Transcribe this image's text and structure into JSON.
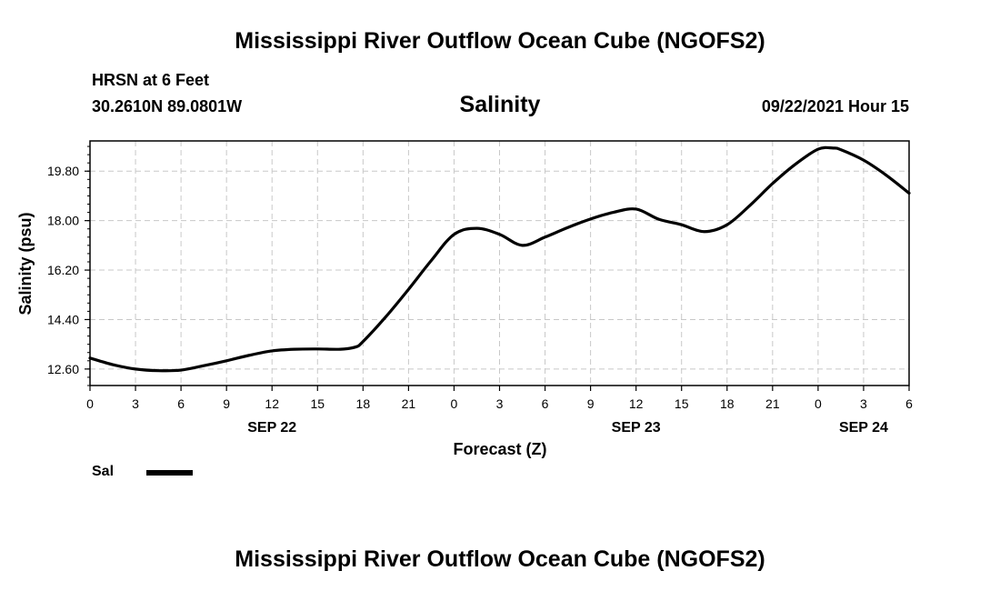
{
  "header": {
    "title": "Mississippi River Outflow Ocean Cube (NGOFS2)",
    "station": "HRSN at 6 Feet",
    "coords": "30.2610N  89.0801W",
    "subtitle": "Salinity",
    "datetime": "09/22/2021 Hour 15"
  },
  "footer": {
    "title": "Mississippi River Outflow Ocean Cube (NGOFS2)"
  },
  "legend": {
    "label": "Sal",
    "color": "#000000"
  },
  "chart_data": {
    "type": "line",
    "title": "Salinity",
    "xlabel": "Forecast (Z)",
    "ylabel": "Salinity (psu)",
    "grid": true,
    "xlim": [
      0,
      54
    ],
    "ylim": [
      12.0,
      20.9
    ],
    "yticks": [
      "12.60",
      "14.40",
      "16.20",
      "18.00",
      "19.80"
    ],
    "xticks": [
      "0",
      "3",
      "6",
      "9",
      "12",
      "15",
      "18",
      "21",
      "0",
      "3",
      "6",
      "9",
      "12",
      "15",
      "18",
      "21",
      "0",
      "3",
      "6"
    ],
    "date_labels": [
      {
        "label": "SEP 22",
        "hour": 12
      },
      {
        "label": "SEP 23",
        "hour": 36
      },
      {
        "label": "SEP 24",
        "hour": 51
      }
    ],
    "series": [
      {
        "name": "Sal",
        "x": [
          0,
          1.5,
          3,
          4.5,
          6,
          7.5,
          9,
          10.5,
          12,
          13.5,
          15,
          16.5,
          17.5,
          18,
          19.5,
          21,
          22.5,
          24,
          25.5,
          27,
          28.5,
          30,
          31.5,
          33,
          34.5,
          36,
          37.5,
          39,
          40.5,
          42,
          43.5,
          45,
          46.5,
          48,
          49,
          49.5,
          51,
          52.5,
          54
        ],
        "y": [
          13.0,
          12.76,
          12.6,
          12.54,
          12.56,
          12.72,
          12.9,
          13.1,
          13.26,
          13.32,
          13.33,
          13.32,
          13.4,
          13.6,
          14.5,
          15.5,
          16.55,
          17.5,
          17.72,
          17.5,
          17.1,
          17.4,
          17.75,
          18.06,
          18.3,
          18.42,
          18.05,
          17.85,
          17.6,
          17.85,
          18.55,
          19.35,
          20.05,
          20.6,
          20.64,
          20.58,
          20.2,
          19.65,
          19.0
        ]
      }
    ]
  }
}
